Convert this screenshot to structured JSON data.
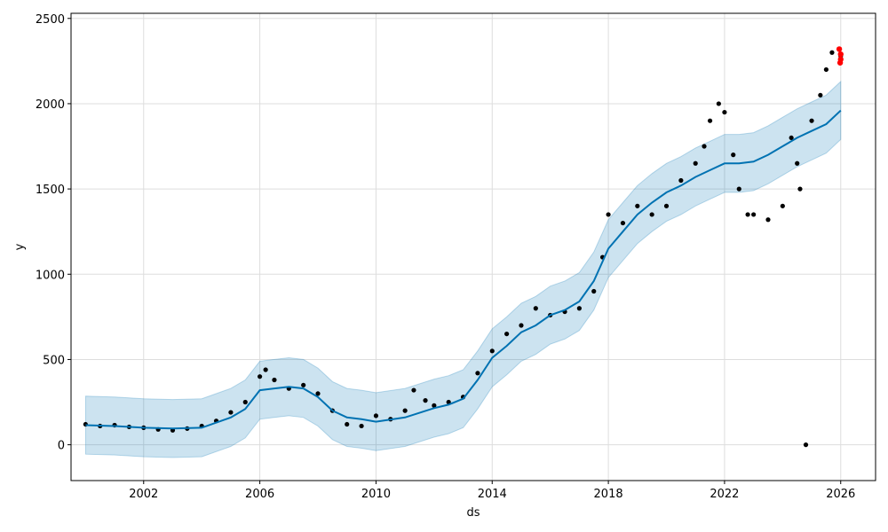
{
  "chart_data": {
    "type": "line",
    "title": "",
    "xlabel": "ds",
    "ylabel": "y",
    "grid": true,
    "xlim": [
      1999.5,
      2027.2
    ],
    "ylim": [
      -210,
      2530
    ],
    "x_ticks": [
      2002,
      2006,
      2010,
      2014,
      2018,
      2022,
      2026
    ],
    "x_tick_labels": [
      "2002",
      "2006",
      "2010",
      "2014",
      "2018",
      "2022",
      "2026"
    ],
    "y_ticks": [
      0,
      500,
      1000,
      1500,
      2000,
      2500
    ],
    "y_tick_labels": [
      "0",
      "500",
      "1000",
      "1500",
      "2000",
      "2500"
    ],
    "colors": {
      "forecast": "#0072B2",
      "interval_fill": "#0072B2",
      "observed": "#000000",
      "highlight": "#ff0000",
      "grid": "#dddddd"
    },
    "series": [
      {
        "role": "forecast",
        "x": [
          2000.0,
          2001.0,
          2002.0,
          2003.0,
          2004.0,
          2005.0,
          2005.5,
          2006.0,
          2006.5,
          2007.0,
          2007.5,
          2008.0,
          2008.5,
          2009.0,
          2009.5,
          2010.0,
          2011.0,
          2012.0,
          2012.5,
          2013.0,
          2013.5,
          2014.0,
          2014.5,
          2015.0,
          2015.5,
          2016.0,
          2016.5,
          2017.0,
          2017.5,
          2018.0,
          2018.5,
          2019.0,
          2019.5,
          2020.0,
          2020.5,
          2021.0,
          2021.5,
          2022.0,
          2022.5,
          2023.0,
          2023.5,
          2024.0,
          2024.5,
          2025.0,
          2025.5,
          2026.0
        ],
        "y": [
          115,
          110,
          100,
          95,
          100,
          160,
          210,
          320,
          330,
          340,
          330,
          280,
          200,
          160,
          150,
          135,
          160,
          215,
          235,
          270,
          380,
          510,
          580,
          660,
          700,
          760,
          790,
          840,
          960,
          1150,
          1250,
          1350,
          1420,
          1480,
          1520,
          1570,
          1610,
          1650,
          1650,
          1660,
          1700,
          1750,
          1800,
          1840,
          1880,
          1960
        ]
      },
      {
        "role": "interval_upper",
        "x": [
          2000.0,
          2001.0,
          2002.0,
          2003.0,
          2004.0,
          2005.0,
          2005.5,
          2006.0,
          2006.5,
          2007.0,
          2007.5,
          2008.0,
          2008.5,
          2009.0,
          2009.5,
          2010.0,
          2011.0,
          2012.0,
          2012.5,
          2013.0,
          2013.5,
          2014.0,
          2014.5,
          2015.0,
          2015.5,
          2016.0,
          2016.5,
          2017.0,
          2017.5,
          2018.0,
          2018.5,
          2019.0,
          2019.5,
          2020.0,
          2020.5,
          2021.0,
          2021.5,
          2022.0,
          2022.5,
          2023.0,
          2023.5,
          2024.0,
          2024.5,
          2025.0,
          2025.5,
          2026.0
        ],
        "y": [
          285,
          280,
          270,
          265,
          270,
          330,
          380,
          490,
          500,
          510,
          500,
          450,
          370,
          330,
          320,
          305,
          330,
          385,
          405,
          440,
          550,
          680,
          750,
          830,
          870,
          930,
          960,
          1010,
          1130,
          1320,
          1420,
          1520,
          1590,
          1650,
          1690,
          1740,
          1780,
          1820,
          1820,
          1830,
          1870,
          1920,
          1970,
          2010,
          2050,
          2130
        ]
      },
      {
        "role": "interval_lower",
        "x": [
          2000.0,
          2001.0,
          2002.0,
          2003.0,
          2004.0,
          2005.0,
          2005.5,
          2006.0,
          2006.5,
          2007.0,
          2007.5,
          2008.0,
          2008.5,
          2009.0,
          2009.5,
          2010.0,
          2011.0,
          2012.0,
          2012.5,
          2013.0,
          2013.5,
          2014.0,
          2014.5,
          2015.0,
          2015.5,
          2016.0,
          2016.5,
          2017.0,
          2017.5,
          2018.0,
          2018.5,
          2019.0,
          2019.5,
          2020.0,
          2020.5,
          2021.0,
          2021.5,
          2022.0,
          2022.5,
          2023.0,
          2023.5,
          2024.0,
          2024.5,
          2025.0,
          2025.5,
          2026.0
        ],
        "y": [
          -55,
          -60,
          -70,
          -75,
          -70,
          -10,
          40,
          150,
          160,
          170,
          160,
          110,
          30,
          -10,
          -20,
          -35,
          -10,
          45,
          65,
          100,
          210,
          340,
          410,
          490,
          530,
          590,
          620,
          670,
          790,
          980,
          1080,
          1180,
          1250,
          1310,
          1350,
          1400,
          1440,
          1480,
          1480,
          1490,
          1530,
          1580,
          1630,
          1670,
          1710,
          1790
        ]
      },
      {
        "role": "observed",
        "x": [
          2000.0,
          2000.5,
          2001.0,
          2001.5,
          2002.0,
          2002.5,
          2003.0,
          2003.5,
          2004.0,
          2004.5,
          2005.0,
          2005.5,
          2006.0,
          2006.2,
          2006.5,
          2007.0,
          2007.5,
          2008.0,
          2008.5,
          2009.0,
          2009.5,
          2010.0,
          2010.5,
          2011.0,
          2011.3,
          2011.7,
          2012.0,
          2012.5,
          2013.0,
          2013.5,
          2014.0,
          2014.5,
          2015.0,
          2015.5,
          2016.0,
          2016.5,
          2017.0,
          2017.5,
          2017.8,
          2018.0,
          2018.5,
          2019.0,
          2019.5,
          2020.0,
          2020.5,
          2021.0,
          2021.3,
          2021.5,
          2021.8,
          2022.0,
          2022.3,
          2022.5,
          2022.8,
          2023.0,
          2023.5,
          2024.0,
          2024.3,
          2024.5,
          2024.6,
          2024.8,
          2025.0,
          2025.3,
          2025.5,
          2025.7,
          2026.0
        ],
        "y": [
          120,
          110,
          115,
          105,
          100,
          90,
          85,
          95,
          110,
          140,
          190,
          250,
          400,
          440,
          380,
          330,
          350,
          300,
          200,
          120,
          110,
          170,
          150,
          200,
          320,
          260,
          230,
          250,
          280,
          420,
          550,
          650,
          700,
          800,
          760,
          780,
          800,
          900,
          1100,
          1350,
          1300,
          1400,
          1350,
          1400,
          1550,
          1650,
          1750,
          1900,
          2000,
          1950,
          1700,
          1500,
          1350,
          1350,
          1320,
          1400,
          1800,
          1650,
          1500,
          0,
          1900,
          2050,
          2200,
          2300,
          2280
        ]
      },
      {
        "role": "highlight",
        "x": [
          2025.95,
          2026.0,
          2026.0,
          2025.98
        ],
        "y": [
          2320,
          2290,
          2260,
          2240
        ]
      }
    ]
  }
}
